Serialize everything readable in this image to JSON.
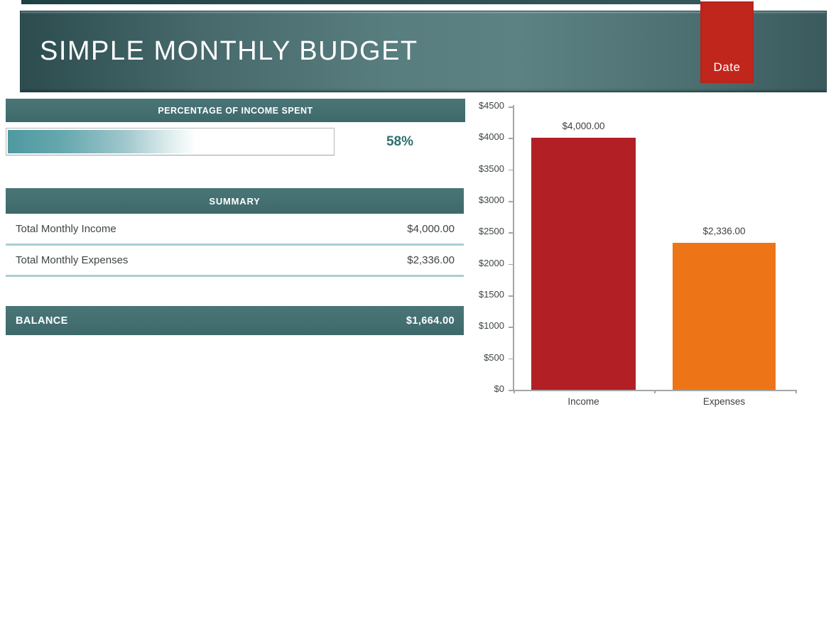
{
  "header": {
    "title": "SIMPLE MONTHLY BUDGET",
    "date_tab_label": "Date"
  },
  "percentage_section": {
    "header": "PERCENTAGE OF INCOME SPENT",
    "percent_value": 58,
    "percent_label": "58%"
  },
  "summary_section": {
    "header": "SUMMARY",
    "rows": [
      {
        "label": "Total Monthly Income",
        "value": "$4,000.00"
      },
      {
        "label": "Total Monthly Expenses",
        "value": "$2,336.00"
      }
    ]
  },
  "balance_section": {
    "label": "BALANCE",
    "value": "$1,664.00"
  },
  "chart_data": {
    "type": "bar",
    "categories": [
      "Income",
      "Expenses"
    ],
    "values": [
      4000,
      2336
    ],
    "data_labels": [
      "$4,000.00",
      "$2,336.00"
    ],
    "bar_colors": [
      "#b22025",
      "#ee7418"
    ],
    "title": "",
    "xlabel": "",
    "ylabel": "",
    "ylim": [
      0,
      4500
    ],
    "ytick_step": 500,
    "ytick_labels": [
      "$0",
      "$500",
      "$1000",
      "$1500",
      "$2000",
      "$2500",
      "$3000",
      "$3500",
      "$4000",
      "$4500"
    ],
    "grid": false,
    "legend": false,
    "axis_color": "#a2a6a6"
  },
  "colors": {
    "banner_teal_dark": "#2c4c4e",
    "banner_teal_light": "#5d8284",
    "section_teal": "#446f71",
    "date_tab_red": "#c1261d",
    "income_red": "#b22025",
    "expenses_orange": "#ee7418",
    "percent_text_teal": "#2e6f71",
    "row_underline_teal": "#a9cfd2",
    "body_text": "#3e4444"
  }
}
